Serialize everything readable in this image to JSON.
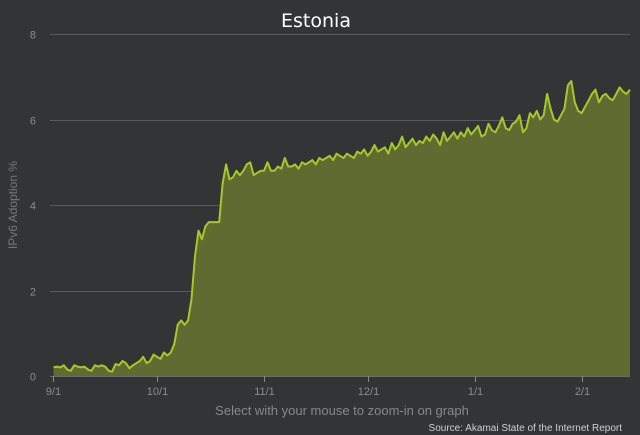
{
  "chart_data": {
    "type": "area",
    "title": "Estonia",
    "ylabel": "IPv6 Adoption %",
    "xlabel": "",
    "ylim": [
      0,
      8
    ],
    "yticks": [
      0,
      2,
      4,
      6,
      8
    ],
    "xlim": [
      "2015-08-31",
      "2016-02-15"
    ],
    "x_tick_labels": [
      {
        "label": "9/1",
        "date": "2015-09-01"
      },
      {
        "label": "10/1",
        "date": "2015-10-01"
      },
      {
        "label": "11/1",
        "date": "2015-11-01"
      },
      {
        "label": "12/1",
        "date": "2015-12-01"
      },
      {
        "label": "1/1",
        "date": "2016-01-01"
      },
      {
        "label": "2/1",
        "date": "2016-02-01"
      }
    ],
    "grid": true,
    "line_color": "#a8c82a",
    "fill_color": "#5f6b30",
    "x": [
      "2015-09-01",
      "2015-09-02",
      "2015-09-03",
      "2015-09-04",
      "2015-09-05",
      "2015-09-06",
      "2015-09-07",
      "2015-09-08",
      "2015-09-09",
      "2015-09-10",
      "2015-09-11",
      "2015-09-12",
      "2015-09-13",
      "2015-09-14",
      "2015-09-15",
      "2015-09-16",
      "2015-09-17",
      "2015-09-18",
      "2015-09-19",
      "2015-09-20",
      "2015-09-21",
      "2015-09-22",
      "2015-09-23",
      "2015-09-24",
      "2015-09-25",
      "2015-09-26",
      "2015-09-27",
      "2015-09-28",
      "2015-09-29",
      "2015-09-30",
      "2015-10-01",
      "2015-10-02",
      "2015-10-03",
      "2015-10-04",
      "2015-10-05",
      "2015-10-06",
      "2015-10-07",
      "2015-10-08",
      "2015-10-09",
      "2015-10-10",
      "2015-10-11",
      "2015-10-12",
      "2015-10-13",
      "2015-10-14",
      "2015-10-15",
      "2015-10-16",
      "2015-10-17",
      "2015-10-18",
      "2015-10-19",
      "2015-10-20",
      "2015-10-21",
      "2015-10-22",
      "2015-10-23",
      "2015-10-24",
      "2015-10-25",
      "2015-10-26",
      "2015-10-27",
      "2015-10-28",
      "2015-10-29",
      "2015-10-30",
      "2015-10-31",
      "2015-11-01",
      "2015-11-02",
      "2015-11-03",
      "2015-11-04",
      "2015-11-05",
      "2015-11-06",
      "2015-11-07",
      "2015-11-08",
      "2015-11-09",
      "2015-11-10",
      "2015-11-11",
      "2015-11-12",
      "2015-11-13",
      "2015-11-14",
      "2015-11-15",
      "2015-11-16",
      "2015-11-17",
      "2015-11-18",
      "2015-11-19",
      "2015-11-20",
      "2015-11-21",
      "2015-11-22",
      "2015-11-23",
      "2015-11-24",
      "2015-11-25",
      "2015-11-26",
      "2015-11-27",
      "2015-11-28",
      "2015-11-29",
      "2015-11-30",
      "2015-12-01",
      "2015-12-02",
      "2015-12-03",
      "2015-12-04",
      "2015-12-05",
      "2015-12-06",
      "2015-12-07",
      "2015-12-08",
      "2015-12-09",
      "2015-12-10",
      "2015-12-11",
      "2015-12-12",
      "2015-12-13",
      "2015-12-14",
      "2015-12-15",
      "2015-12-16",
      "2015-12-17",
      "2015-12-18",
      "2015-12-19",
      "2015-12-20",
      "2015-12-21",
      "2015-12-22",
      "2015-12-23",
      "2015-12-24",
      "2015-12-25",
      "2015-12-26",
      "2015-12-27",
      "2015-12-28",
      "2015-12-29",
      "2015-12-30",
      "2015-12-31",
      "2016-01-01",
      "2016-01-02",
      "2016-01-03",
      "2016-01-04",
      "2016-01-05",
      "2016-01-06",
      "2016-01-07",
      "2016-01-08",
      "2016-01-09",
      "2016-01-10",
      "2016-01-11",
      "2016-01-12",
      "2016-01-13",
      "2016-01-14",
      "2016-01-15",
      "2016-01-16",
      "2016-01-17",
      "2016-01-18",
      "2016-01-19",
      "2016-01-20",
      "2016-01-21",
      "2016-01-22",
      "2016-01-23",
      "2016-01-24",
      "2016-01-25",
      "2016-01-26",
      "2016-01-27",
      "2016-01-28",
      "2016-01-29",
      "2016-01-30",
      "2016-01-31",
      "2016-02-01",
      "2016-02-02",
      "2016-02-03",
      "2016-02-04",
      "2016-02-05",
      "2016-02-06",
      "2016-02-07",
      "2016-02-08",
      "2016-02-09",
      "2016-02-10",
      "2016-02-11",
      "2016-02-12",
      "2016-02-13",
      "2016-02-14",
      "2016-02-15"
    ],
    "y": [
      0.2,
      0.22,
      0.2,
      0.25,
      0.15,
      0.12,
      0.25,
      0.22,
      0.2,
      0.22,
      0.15,
      0.12,
      0.25,
      0.22,
      0.25,
      0.22,
      0.12,
      0.1,
      0.28,
      0.25,
      0.35,
      0.3,
      0.18,
      0.25,
      0.3,
      0.35,
      0.45,
      0.3,
      0.35,
      0.5,
      0.45,
      0.4,
      0.55,
      0.48,
      0.55,
      0.75,
      1.2,
      1.3,
      1.2,
      1.3,
      1.8,
      2.8,
      3.4,
      3.2,
      3.5,
      3.6,
      3.6,
      3.6,
      3.6,
      4.5,
      4.95,
      4.6,
      4.65,
      4.8,
      4.7,
      4.8,
      4.95,
      5.0,
      4.7,
      4.75,
      4.8,
      4.8,
      5.0,
      4.8,
      4.8,
      4.9,
      4.85,
      5.1,
      4.9,
      4.9,
      4.95,
      4.85,
      5.0,
      4.95,
      5.0,
      5.05,
      4.95,
      5.1,
      5.05,
      5.1,
      5.15,
      5.05,
      5.2,
      5.15,
      5.1,
      5.2,
      5.15,
      5.1,
      5.25,
      5.2,
      5.3,
      5.15,
      5.25,
      5.4,
      5.25,
      5.3,
      5.35,
      5.2,
      5.45,
      5.3,
      5.4,
      5.6,
      5.35,
      5.45,
      5.55,
      5.4,
      5.5,
      5.45,
      5.6,
      5.5,
      5.65,
      5.55,
      5.4,
      5.7,
      5.5,
      5.6,
      5.7,
      5.55,
      5.7,
      5.6,
      5.8,
      5.65,
      5.75,
      5.85,
      5.6,
      5.65,
      5.9,
      5.75,
      5.7,
      5.85,
      6.05,
      5.8,
      5.75,
      5.9,
      5.95,
      6.1,
      5.7,
      5.8,
      6.15,
      6.05,
      6.2,
      6.0,
      6.1,
      6.6,
      6.25,
      6.0,
      5.95,
      6.1,
      6.25,
      6.8,
      6.9,
      6.4,
      6.2,
      6.15,
      6.3,
      6.45,
      6.6,
      6.7,
      6.4,
      6.55,
      6.6,
      6.5,
      6.45,
      6.6,
      6.75,
      6.65,
      6.6,
      6.7
    ]
  },
  "hint": "Select with your mouse to zoom-in on graph",
  "source": "Source: Akamai State of the Internet Report"
}
